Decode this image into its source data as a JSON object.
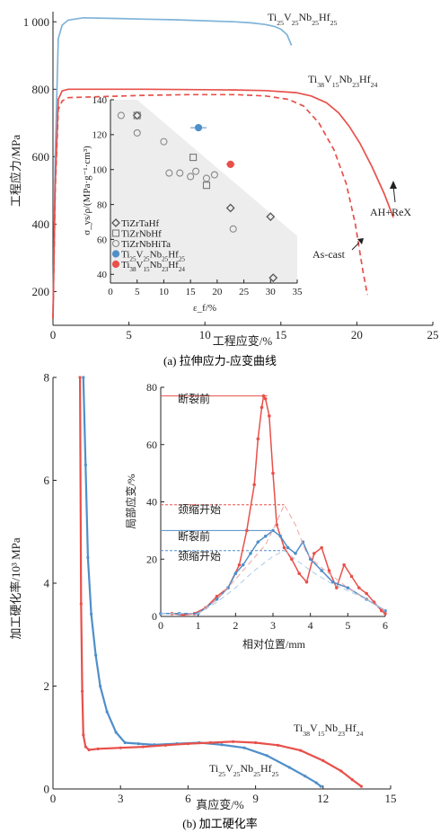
{
  "figure_a": {
    "caption": "(a) 拉伸应力-应变曲线",
    "chart_data": {
      "type": "line",
      "xlabel": "工程应变/%",
      "ylabel": "工程应力/MPa",
      "xlim": [
        0,
        25
      ],
      "ylim": [
        100,
        1030
      ],
      "xticks": [
        0,
        5,
        10,
        15,
        20,
        25
      ],
      "yticks": [
        200,
        400,
        600,
        800,
        1000
      ],
      "ytick_labels": [
        "200",
        "400",
        "600",
        "800",
        "1 000"
      ],
      "series": [
        {
          "name": "Ti25V25Nb25Hf25",
          "label_html": "Ti<sub>25</sub>V<sub>25</sub>Nb<sub>25</sub>Hf<sub>25</sub>",
          "color": "#7fb3d9",
          "dash": false,
          "x": [
            0,
            0.15,
            0.35,
            0.6,
            1,
            2,
            4,
            6,
            8,
            10,
            12,
            13,
            14,
            14.6,
            15,
            15.4,
            15.7
          ],
          "y": [
            120,
            600,
            950,
            990,
            1005,
            1012,
            1010,
            1008,
            1006,
            1003,
            1000,
            997,
            992,
            986,
            978,
            962,
            930
          ]
        },
        {
          "name": "Ti38V15Nb23Hf24 AH+ReX",
          "label_html": "Ti<sub>38</sub>V<sub>15</sub>Nb<sub>23</sub>Hf<sub>24</sub>",
          "color": "#e8504a",
          "dash": false,
          "x": [
            0,
            0.15,
            0.35,
            0.6,
            1,
            3,
            6,
            9,
            12,
            14,
            16,
            17,
            18,
            18.8,
            19.5,
            20.2,
            21,
            21.8,
            22.4
          ],
          "y": [
            120,
            520,
            770,
            795,
            800,
            800,
            800,
            799,
            798,
            796,
            790,
            780,
            760,
            730,
            690,
            640,
            570,
            490,
            420
          ]
        },
        {
          "name": "Ti38V15Nb23Hf24 As-cast",
          "color": "#e8504a",
          "dash": true,
          "x": [
            0,
            0.15,
            0.35,
            0.6,
            1,
            3,
            6,
            9,
            12,
            14,
            15.5,
            16.5,
            17.5,
            18.5,
            19.3,
            19.9,
            20.4,
            20.7
          ],
          "y": [
            120,
            500,
            740,
            765,
            775,
            778,
            782,
            784,
            784,
            780,
            770,
            750,
            700,
            620,
            520,
            400,
            260,
            190
          ]
        }
      ],
      "annotations": [
        {
          "text": "AH+ReX"
        },
        {
          "text": "As-cast"
        }
      ]
    },
    "inset": {
      "chart_data": {
        "type": "scatter",
        "xlabel": "ε_f/%",
        "ylabel": "σ_ys/ρ/(MPa·g⁻¹·cm³)",
        "xlim": [
          0,
          35
        ],
        "ylim": [
          35,
          140
        ],
        "xticks": [
          0,
          5,
          10,
          15,
          20,
          25,
          30,
          35
        ],
        "yticks": [
          40,
          60,
          80,
          100,
          120,
          140
        ],
        "series": [
          {
            "name": "TiZrTaHf",
            "marker": "diamond",
            "color": "#555",
            "x": [
              5,
              22.5,
              30,
              30.5
            ],
            "y": [
              131,
              78,
              73,
              38
            ]
          },
          {
            "name": "TiZrNbHf",
            "marker": "square",
            "color": "#777",
            "x": [
              15.5,
              18,
              5
            ],
            "y": [
              107,
              91,
              131
            ]
          },
          {
            "name": "TiZrNbHiTa",
            "marker": "circle",
            "color": "#888",
            "x": [
              2,
              5,
              10,
              11,
              13,
              15,
              16,
              18,
              19.5,
              23
            ],
            "y": [
              131,
              121,
              116,
              98,
              98,
              96,
              99,
              95,
              97,
              66
            ]
          },
          {
            "name": "Ti25V25Nb25Hf25",
            "label_html": "Ti<sub>25</sub>V<sub>25</sub>Nb<sub>25</sub>Hf<sub>25</sub>",
            "marker": "filled-circle",
            "color": "#4f8fc9",
            "x": [
              16.5
            ],
            "y": [
              124
            ],
            "xerr": [
              1.5
            ]
          },
          {
            "name": "Ti38V15Nb23Hf24",
            "label_html": "Ti<sub>38</sub>V<sub>15</sub>Nb<sub>23</sub>Hf<sub>24</sub>",
            "marker": "filled-circle",
            "color": "#e8504a",
            "x": [
              22.5
            ],
            "y": [
              103
            ],
            "xerr": [
              0.8
            ]
          }
        ]
      }
    }
  },
  "figure_b": {
    "caption": "(b) 加工硬化率",
    "chart_data": {
      "type": "line",
      "xlabel": "真应变/%",
      "ylabel": "加工硬化率/10³ MPa",
      "xlim": [
        0,
        15
      ],
      "ylim": [
        0,
        8
      ],
      "xticks": [
        0,
        3,
        6,
        9,
        12,
        15
      ],
      "yticks": [
        0,
        2,
        4,
        6,
        8
      ],
      "series": [
        {
          "name": "Ti25V25Nb25Hf25",
          "label_html": "Ti<sub>25</sub>V<sub>25</sub>Nb<sub>25</sub>Hf<sub>25</sub>",
          "color": "#4f8fc9",
          "x": [
            1.35,
            1.45,
            1.55,
            1.7,
            1.9,
            2.1,
            2.4,
            2.8,
            3.2,
            3.8,
            4.5,
            5.5,
            6.5,
            7.5,
            8.5,
            9.5,
            10.5,
            11.2,
            11.7,
            11.9
          ],
          "y": [
            8,
            6.3,
            4.5,
            3.4,
            2.6,
            2.0,
            1.5,
            1.1,
            0.9,
            0.88,
            0.86,
            0.88,
            0.9,
            0.86,
            0.8,
            0.65,
            0.42,
            0.25,
            0.12,
            0.05
          ]
        },
        {
          "name": "Ti38V15Nb23Hf24",
          "label_html": "Ti<sub>38</sub>V<sub>15</sub>Nb<sub>23</sub>Hf<sub>24</sub>",
          "color": "#e8504a",
          "x": [
            1.2,
            1.25,
            1.3,
            1.35,
            1.45,
            1.6,
            2,
            3,
            4,
            5,
            6,
            7,
            8,
            9,
            10,
            11,
            12,
            12.8,
            13.3,
            13.7
          ],
          "y": [
            8,
            3.6,
            1.9,
            1.05,
            0.82,
            0.76,
            0.78,
            0.8,
            0.82,
            0.85,
            0.88,
            0.9,
            0.92,
            0.9,
            0.85,
            0.75,
            0.55,
            0.35,
            0.18,
            0.05
          ]
        }
      ]
    },
    "inset": {
      "chart_data": {
        "type": "line",
        "xlabel": "相对位置/mm",
        "ylabel": "局部应变/%",
        "xlim": [
          0,
          6
        ],
        "ylim": [
          0,
          80
        ],
        "xticks": [
          0,
          1,
          2,
          3,
          4,
          5,
          6
        ],
        "yticks": [
          0,
          20,
          40,
          60,
          80
        ],
        "annotations": [
          {
            "text": "断裂前",
            "level": 77,
            "color": "#e8504a"
          },
          {
            "text": "颈缩开始",
            "level": 39,
            "color": "#e8504a"
          },
          {
            "text": "断裂前",
            "level": 30,
            "color": "#4f8fc9"
          },
          {
            "text": "颈缩开始",
            "level": 23,
            "color": "#4f8fc9"
          }
        ],
        "series": [
          {
            "name": "red-fracture",
            "color": "#e8504a",
            "dash": false,
            "x": [
              0,
              0.3,
              0.6,
              0.9,
              1.2,
              1.5,
              1.8,
              2.1,
              2.3,
              2.5,
              2.6,
              2.7,
              2.75,
              2.8,
              2.9,
              3.0,
              3.1,
              3.3,
              3.5,
              3.7,
              3.9,
              4.1,
              4.3,
              4.5,
              4.7,
              4.9,
              5.1,
              5.3,
              5.5,
              5.7,
              5.9,
              6.0
            ],
            "y": [
              1,
              1,
              0.5,
              1,
              3,
              7,
              10,
              18,
              30,
              46,
              62,
              73,
              77,
              76,
              70,
              50,
              32,
              24,
              20,
              15,
              12,
              22,
              24,
              16,
              10,
              18,
              14,
              10,
              8,
              5,
              2,
              1
            ]
          },
          {
            "name": "blue-fracture",
            "color": "#4f8fc9",
            "dash": false,
            "x": [
              0,
              0.5,
              1,
              1.5,
              1.8,
              2.0,
              2.2,
              2.4,
              2.6,
              2.8,
              3.0,
              3.2,
              3.4,
              3.6,
              3.8,
              4.0,
              4.3,
              4.6,
              5,
              5.5,
              6
            ],
            "y": [
              1,
              1,
              1,
              6,
              10,
              15,
              18,
              22,
              26,
              28,
              30,
              28,
              24,
              22,
              26,
              20,
              16,
              12,
              10,
              6,
              2
            ]
          },
          {
            "name": "red-neck",
            "color": "#f0a0a0",
            "dash": true,
            "x": [
              0,
              0.5,
              1,
              1.5,
              2,
              2.4,
              2.8,
              3.1,
              3.3,
              3.6,
              3.9,
              4.2,
              4.6,
              5,
              5.5,
              6
            ],
            "y": [
              1,
              1,
              1,
              6,
              13,
              19,
              25,
              33,
              39,
              32,
              22,
              18,
              14,
              10,
              6,
              2
            ]
          },
          {
            "name": "blue-neck",
            "color": "#a9cbe6",
            "dash": true,
            "x": [
              0,
              0.5,
              1,
              1.5,
              2,
              2.5,
              3,
              3.3,
              3.6,
              4,
              4.5,
              5,
              5.5,
              6
            ],
            "y": [
              1,
              1,
              1,
              5,
              10,
              16,
              21,
              23,
              20,
              16,
              12,
              9,
              6,
              2
            ]
          }
        ]
      }
    }
  }
}
